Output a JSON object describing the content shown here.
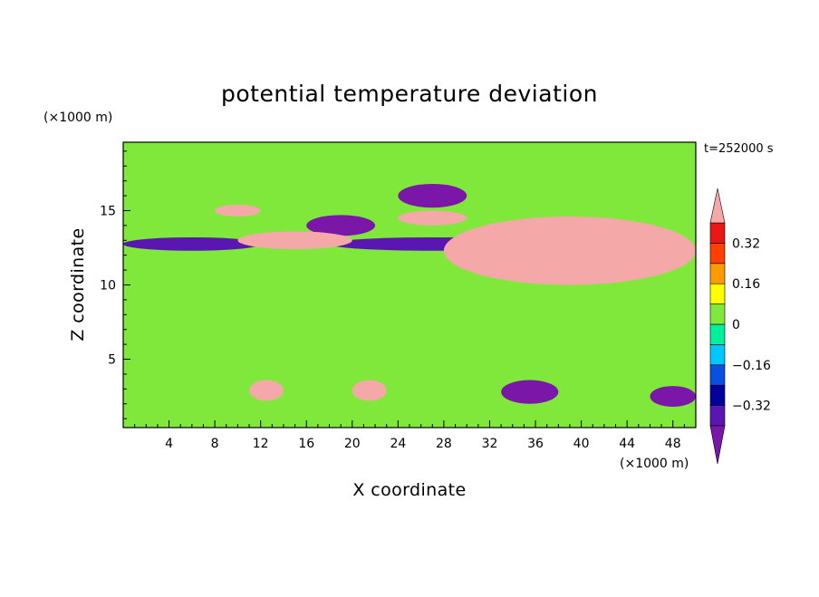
{
  "chart_data": {
    "type": "heatmap",
    "title": "potential temperature deviation",
    "xlabel": "X coordinate",
    "ylabel": "Z coordinate",
    "x_unit": "(×1000 m)",
    "y_unit": "(×1000 m)",
    "time_label": "t=252000 s",
    "xlim": [
      0,
      50
    ],
    "ylim": [
      0.4,
      19.6
    ],
    "x_ticks": [
      4,
      8,
      12,
      16,
      20,
      24,
      28,
      32,
      36,
      40,
      44,
      48
    ],
    "y_ticks": [
      5,
      10,
      15
    ],
    "colorbar": {
      "levels": [
        -0.48,
        -0.4,
        -0.32,
        -0.24,
        -0.16,
        -0.08,
        0,
        0.08,
        0.16,
        0.24,
        0.32,
        0.4
      ],
      "tick_labels": [
        "0.32",
        "0.16",
        "0",
        "−0.16",
        "−0.32"
      ],
      "tick_values": [
        0.32,
        0.16,
        0,
        -0.16,
        -0.32
      ],
      "colors": [
        "#7a16a8",
        "#5a16b0",
        "#00009a",
        "#0a50e0",
        "#00c8ff",
        "#00f09c",
        "#80e83a",
        "#ffff00",
        "#ff9b00",
        "#ff4000",
        "#e81818",
        "#f5a8a8"
      ],
      "extend": "both"
    },
    "background_level": 0.02,
    "features": [
      {
        "name": "upper-purple-band",
        "level": -0.48,
        "x": [
          16,
          22
        ],
        "z": [
          13.3,
          14.7
        ]
      },
      {
        "name": "upper-purple-blob",
        "level": -0.48,
        "x": [
          24,
          30
        ],
        "z": [
          15.2,
          16.8
        ]
      },
      {
        "name": "upper-pink-band",
        "level": 0.44,
        "x": [
          8,
          12
        ],
        "z": [
          14.6,
          15.4
        ]
      },
      {
        "name": "upper-pink-band-2",
        "level": 0.44,
        "x": [
          24,
          30
        ],
        "z": [
          14.0,
          15.0
        ]
      },
      {
        "name": "lower-navy-band",
        "level": -0.36,
        "x": [
          0,
          12
        ],
        "z": [
          12.3,
          13.2
        ]
      },
      {
        "name": "lower-navy-band-2",
        "level": -0.36,
        "x": [
          18,
          36
        ],
        "z": [
          12.3,
          13.2
        ]
      },
      {
        "name": "lower-pink-band",
        "level": 0.44,
        "x": [
          10,
          20
        ],
        "z": [
          12.4,
          13.6
        ]
      },
      {
        "name": "sloping-pink-band",
        "level": 0.44,
        "x": [
          28,
          50
        ],
        "z": [
          10.0,
          14.6
        ]
      },
      {
        "name": "near-surface-pink-cell",
        "level": 0.44,
        "x": [
          11,
          14
        ],
        "z": [
          2.2,
          3.6
        ]
      },
      {
        "name": "near-surface-pink-cell-2",
        "level": 0.44,
        "x": [
          20,
          23
        ],
        "z": [
          2.2,
          3.6
        ]
      },
      {
        "name": "near-surface-purple-cell",
        "level": -0.48,
        "x": [
          33,
          38
        ],
        "z": [
          2.0,
          3.6
        ]
      },
      {
        "name": "near-surface-purple-cell-2",
        "level": -0.48,
        "x": [
          46,
          50
        ],
        "z": [
          1.8,
          3.2
        ]
      }
    ]
  }
}
